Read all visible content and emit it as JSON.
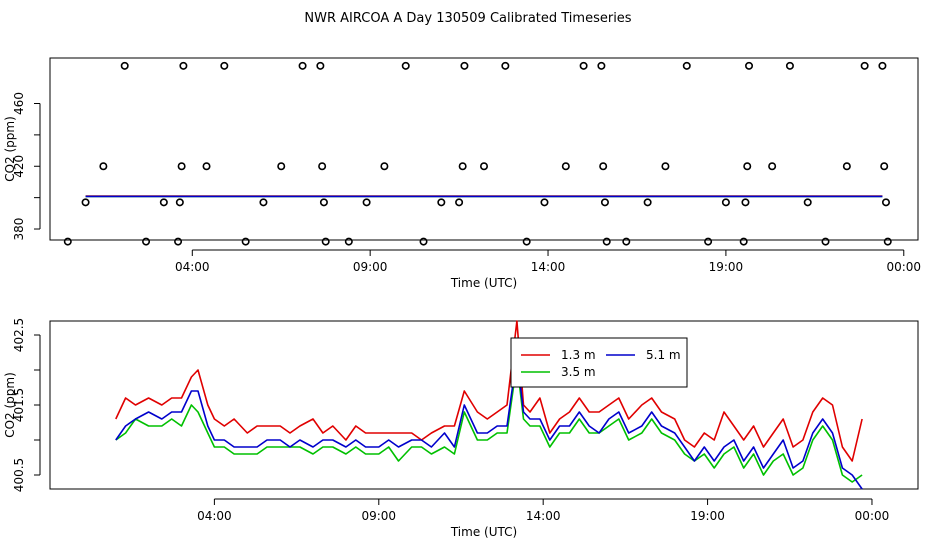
{
  "title": "NWR AIRCOA A  Day 130509  Calibrated Timeseries",
  "colors": {
    "1.3 m": "#e00000",
    "3.5 m": "#00c000",
    "5.1 m": "#0000cc"
  },
  "chart_data": [
    {
      "type": "scatter",
      "xlabel": "Time (UTC)",
      "ylabel": "CO2 (ppm)",
      "xlim": [
        0,
        24.4
      ],
      "ylim": [
        373,
        489
      ],
      "x_ticks": [
        {
          "x": 4,
          "label": "04:00"
        },
        {
          "x": 9,
          "label": "09:00"
        },
        {
          "x": 14,
          "label": "14:00"
        },
        {
          "x": 19,
          "label": "19:00"
        },
        {
          "x": 24,
          "label": "00:00"
        }
      ],
      "y_ticks": [
        {
          "y": 380,
          "label": "380"
        },
        {
          "y": 420,
          "label": "420"
        },
        {
          "y": 460,
          "label": "460"
        }
      ],
      "points": [
        [
          0.5,
          372
        ],
        [
          1.0,
          397
        ],
        [
          1.5,
          420
        ],
        [
          2.1,
          484
        ],
        [
          2.7,
          372
        ],
        [
          3.2,
          397
        ],
        [
          3.6,
          372
        ],
        [
          3.65,
          397
        ],
        [
          3.7,
          420
        ],
        [
          3.75,
          484
        ],
        [
          4.4,
          420
        ],
        [
          4.9,
          484
        ],
        [
          5.5,
          372
        ],
        [
          6.0,
          397
        ],
        [
          6.5,
          420
        ],
        [
          7.1,
          484
        ],
        [
          7.6,
          484
        ],
        [
          7.65,
          420
        ],
        [
          7.7,
          397
        ],
        [
          7.75,
          372
        ],
        [
          8.4,
          372
        ],
        [
          8.9,
          397
        ],
        [
          9.4,
          420
        ],
        [
          10.0,
          484
        ],
        [
          10.5,
          372
        ],
        [
          11.0,
          397
        ],
        [
          11.5,
          397
        ],
        [
          11.6,
          420
        ],
        [
          11.65,
          484
        ],
        [
          12.2,
          420
        ],
        [
          12.8,
          484
        ],
        [
          13.4,
          372
        ],
        [
          13.9,
          397
        ],
        [
          14.5,
          420
        ],
        [
          15.0,
          484
        ],
        [
          15.5,
          484
        ],
        [
          15.55,
          420
        ],
        [
          15.6,
          397
        ],
        [
          15.65,
          372
        ],
        [
          16.2,
          372
        ],
        [
          16.8,
          397
        ],
        [
          17.3,
          420
        ],
        [
          17.9,
          484
        ],
        [
          18.5,
          372
        ],
        [
          19.0,
          397
        ],
        [
          19.5,
          372
        ],
        [
          19.55,
          397
        ],
        [
          19.6,
          420
        ],
        [
          19.65,
          484
        ],
        [
          20.3,
          420
        ],
        [
          20.8,
          484
        ],
        [
          21.3,
          397
        ],
        [
          21.8,
          372
        ],
        [
          22.4,
          420
        ],
        [
          22.9,
          484
        ],
        [
          23.4,
          484
        ],
        [
          23.45,
          420
        ],
        [
          23.5,
          397
        ],
        [
          23.55,
          372
        ]
      ],
      "series": [
        {
          "name": "1.3 m",
          "x": [
            1.0,
            23.4
          ],
          "values": [
            401.0,
            401.0
          ]
        },
        {
          "name": "3.5 m",
          "x": [
            1.0,
            23.4
          ],
          "values": [
            400.7,
            400.7
          ]
        },
        {
          "name": "5.1 m",
          "x": [
            1.0,
            23.4
          ],
          "values": [
            400.8,
            400.8
          ]
        }
      ]
    },
    {
      "type": "line",
      "xlabel": "Time (UTC)",
      "ylabel": "CO2 (ppm)",
      "xlim": [
        -1,
        25.4
      ],
      "ylim": [
        400.3,
        402.7
      ],
      "x_ticks": [
        {
          "x": 4,
          "label": "04:00"
        },
        {
          "x": 9,
          "label": "09:00"
        },
        {
          "x": 14,
          "label": "14:00"
        },
        {
          "x": 19,
          "label": "19:00"
        },
        {
          "x": 24,
          "label": "00:00"
        }
      ],
      "y_ticks": [
        {
          "y": 400.5,
          "label": "400.5"
        },
        {
          "y": 401.5,
          "label": "401.5"
        },
        {
          "y": 402.5,
          "label": "402.5"
        }
      ],
      "legend": {
        "placement": "top-right of center",
        "entries": [
          "1.3 m",
          "5.1 m",
          "3.5 m"
        ]
      },
      "series": [
        {
          "name": "1.3 m",
          "x": [
            1.0,
            1.3,
            1.6,
            2.0,
            2.4,
            2.7,
            3.0,
            3.3,
            3.5,
            3.8,
            4.0,
            4.3,
            4.6,
            5.0,
            5.3,
            5.6,
            6.0,
            6.3,
            6.6,
            7.0,
            7.3,
            7.6,
            8.0,
            8.3,
            8.6,
            9.0,
            9.3,
            9.6,
            10.0,
            10.3,
            10.6,
            11.0,
            11.3,
            11.6,
            12.0,
            12.3,
            12.6,
            12.9,
            13.2,
            13.4,
            13.6,
            13.9,
            14.2,
            14.5,
            14.8,
            15.1,
            15.4,
            15.7,
            16.0,
            16.3,
            16.6,
            17.0,
            17.3,
            17.6,
            18.0,
            18.3,
            18.6,
            18.9,
            19.2,
            19.5,
            19.8,
            20.1,
            20.4,
            20.7,
            21.0,
            21.3,
            21.6,
            21.9,
            22.2,
            22.5,
            22.8,
            23.1,
            23.4,
            23.7
          ],
          "values": [
            401.3,
            401.6,
            401.5,
            401.6,
            401.5,
            401.6,
            401.6,
            401.9,
            402.0,
            401.5,
            401.3,
            401.2,
            401.3,
            401.1,
            401.2,
            401.2,
            401.2,
            401.1,
            401.2,
            401.3,
            401.1,
            401.2,
            401.0,
            401.2,
            401.1,
            401.1,
            401.1,
            401.1,
            401.1,
            401.0,
            401.1,
            401.2,
            401.2,
            401.7,
            401.4,
            401.3,
            401.4,
            401.5,
            402.7,
            401.5,
            401.4,
            401.6,
            401.1,
            401.3,
            401.4,
            401.6,
            401.4,
            401.4,
            401.5,
            401.6,
            401.3,
            401.5,
            401.6,
            401.4,
            401.3,
            401.0,
            400.9,
            401.1,
            401.0,
            401.4,
            401.2,
            401.0,
            401.2,
            400.9,
            401.1,
            401.3,
            400.9,
            401.0,
            401.4,
            401.6,
            401.5,
            400.9,
            400.7,
            401.3
          ]
        },
        {
          "name": "3.5 m",
          "x": [
            1.0,
            1.3,
            1.6,
            2.0,
            2.4,
            2.7,
            3.0,
            3.3,
            3.5,
            3.8,
            4.0,
            4.3,
            4.6,
            5.0,
            5.3,
            5.6,
            6.0,
            6.3,
            6.6,
            7.0,
            7.3,
            7.6,
            8.0,
            8.3,
            8.6,
            9.0,
            9.3,
            9.6,
            10.0,
            10.3,
            10.6,
            11.0,
            11.3,
            11.6,
            12.0,
            12.3,
            12.6,
            12.9,
            13.2,
            13.4,
            13.6,
            13.9,
            14.2,
            14.5,
            14.8,
            15.1,
            15.4,
            15.7,
            16.0,
            16.3,
            16.6,
            17.0,
            17.3,
            17.6,
            18.0,
            18.3,
            18.6,
            18.9,
            19.2,
            19.5,
            19.8,
            20.1,
            20.4,
            20.7,
            21.0,
            21.3,
            21.6,
            21.9,
            22.2,
            22.5,
            22.8,
            23.1,
            23.4,
            23.7
          ],
          "values": [
            401.0,
            401.1,
            401.3,
            401.2,
            401.2,
            401.3,
            401.2,
            401.5,
            401.4,
            401.1,
            400.9,
            400.9,
            400.8,
            400.8,
            400.8,
            400.9,
            400.9,
            400.9,
            400.9,
            400.8,
            400.9,
            400.9,
            400.8,
            400.9,
            400.8,
            400.8,
            400.9,
            400.7,
            400.9,
            400.9,
            400.8,
            400.9,
            400.8,
            401.4,
            401.0,
            401.0,
            401.1,
            401.1,
            402.1,
            401.3,
            401.2,
            401.2,
            400.9,
            401.1,
            401.1,
            401.3,
            401.1,
            401.1,
            401.2,
            401.3,
            401.0,
            401.1,
            401.3,
            401.1,
            401.0,
            400.8,
            400.7,
            400.8,
            400.6,
            400.8,
            400.9,
            400.6,
            400.8,
            400.5,
            400.7,
            400.8,
            400.5,
            400.6,
            401.0,
            401.2,
            401.0,
            400.5,
            400.4,
            400.5
          ]
        },
        {
          "name": "5.1 m",
          "x": [
            1.0,
            1.3,
            1.6,
            2.0,
            2.4,
            2.7,
            3.0,
            3.3,
            3.5,
            3.8,
            4.0,
            4.3,
            4.6,
            5.0,
            5.3,
            5.6,
            6.0,
            6.3,
            6.6,
            7.0,
            7.3,
            7.6,
            8.0,
            8.3,
            8.6,
            9.0,
            9.3,
            9.6,
            10.0,
            10.3,
            10.6,
            11.0,
            11.3,
            11.6,
            12.0,
            12.3,
            12.6,
            12.9,
            13.2,
            13.4,
            13.6,
            13.9,
            14.2,
            14.5,
            14.8,
            15.1,
            15.4,
            15.7,
            16.0,
            16.3,
            16.6,
            17.0,
            17.3,
            17.6,
            18.0,
            18.3,
            18.6,
            18.9,
            19.2,
            19.5,
            19.8,
            20.1,
            20.4,
            20.7,
            21.0,
            21.3,
            21.6,
            21.9,
            22.2,
            22.5,
            22.8,
            23.1,
            23.4,
            23.7
          ],
          "values": [
            401.0,
            401.2,
            401.3,
            401.4,
            401.3,
            401.4,
            401.4,
            401.7,
            401.7,
            401.2,
            401.0,
            401.0,
            400.9,
            400.9,
            400.9,
            401.0,
            401.0,
            400.9,
            401.0,
            400.9,
            401.0,
            401.0,
            400.9,
            401.0,
            400.9,
            400.9,
            401.0,
            400.9,
            401.0,
            401.0,
            400.9,
            401.1,
            400.9,
            401.5,
            401.1,
            401.1,
            401.2,
            401.2,
            402.2,
            401.4,
            401.3,
            401.3,
            401.0,
            401.2,
            401.2,
            401.4,
            401.2,
            401.1,
            401.3,
            401.4,
            401.1,
            401.2,
            401.4,
            401.2,
            401.1,
            400.9,
            400.7,
            400.9,
            400.7,
            400.9,
            401.0,
            400.7,
            400.9,
            400.6,
            400.8,
            401.0,
            400.6,
            400.7,
            401.1,
            401.3,
            401.1,
            400.6,
            400.5,
            400.3
          ]
        }
      ]
    }
  ]
}
